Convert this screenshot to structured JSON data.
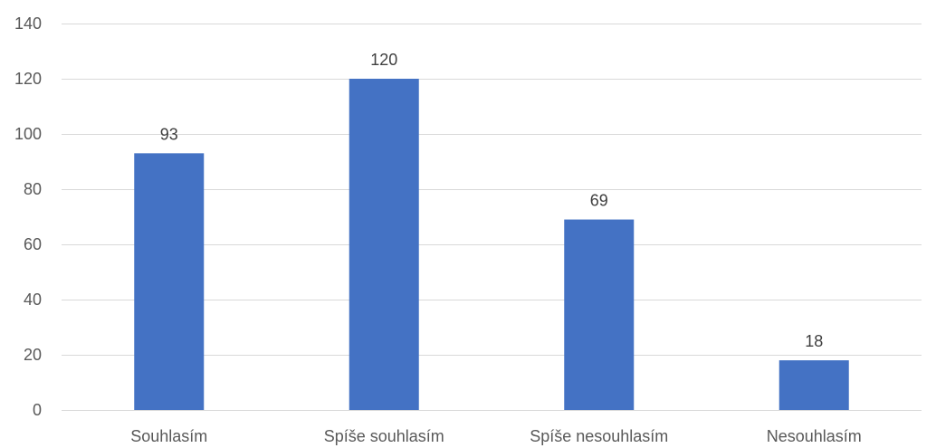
{
  "chart_data": {
    "type": "bar",
    "categories": [
      "Souhlasím",
      "Spíše souhlasím",
      "Spíše nesouhlasím",
      "Nesouhlasím"
    ],
    "values": [
      93,
      120,
      69,
      18
    ],
    "data_labels": [
      "93",
      "120",
      "69",
      "18"
    ],
    "y_ticks": [
      0,
      20,
      40,
      60,
      80,
      100,
      120,
      140
    ],
    "ylim": [
      0,
      140
    ],
    "grid": true,
    "bar_color": "#4472c4",
    "title": "",
    "xlabel": "",
    "ylabel": ""
  }
}
